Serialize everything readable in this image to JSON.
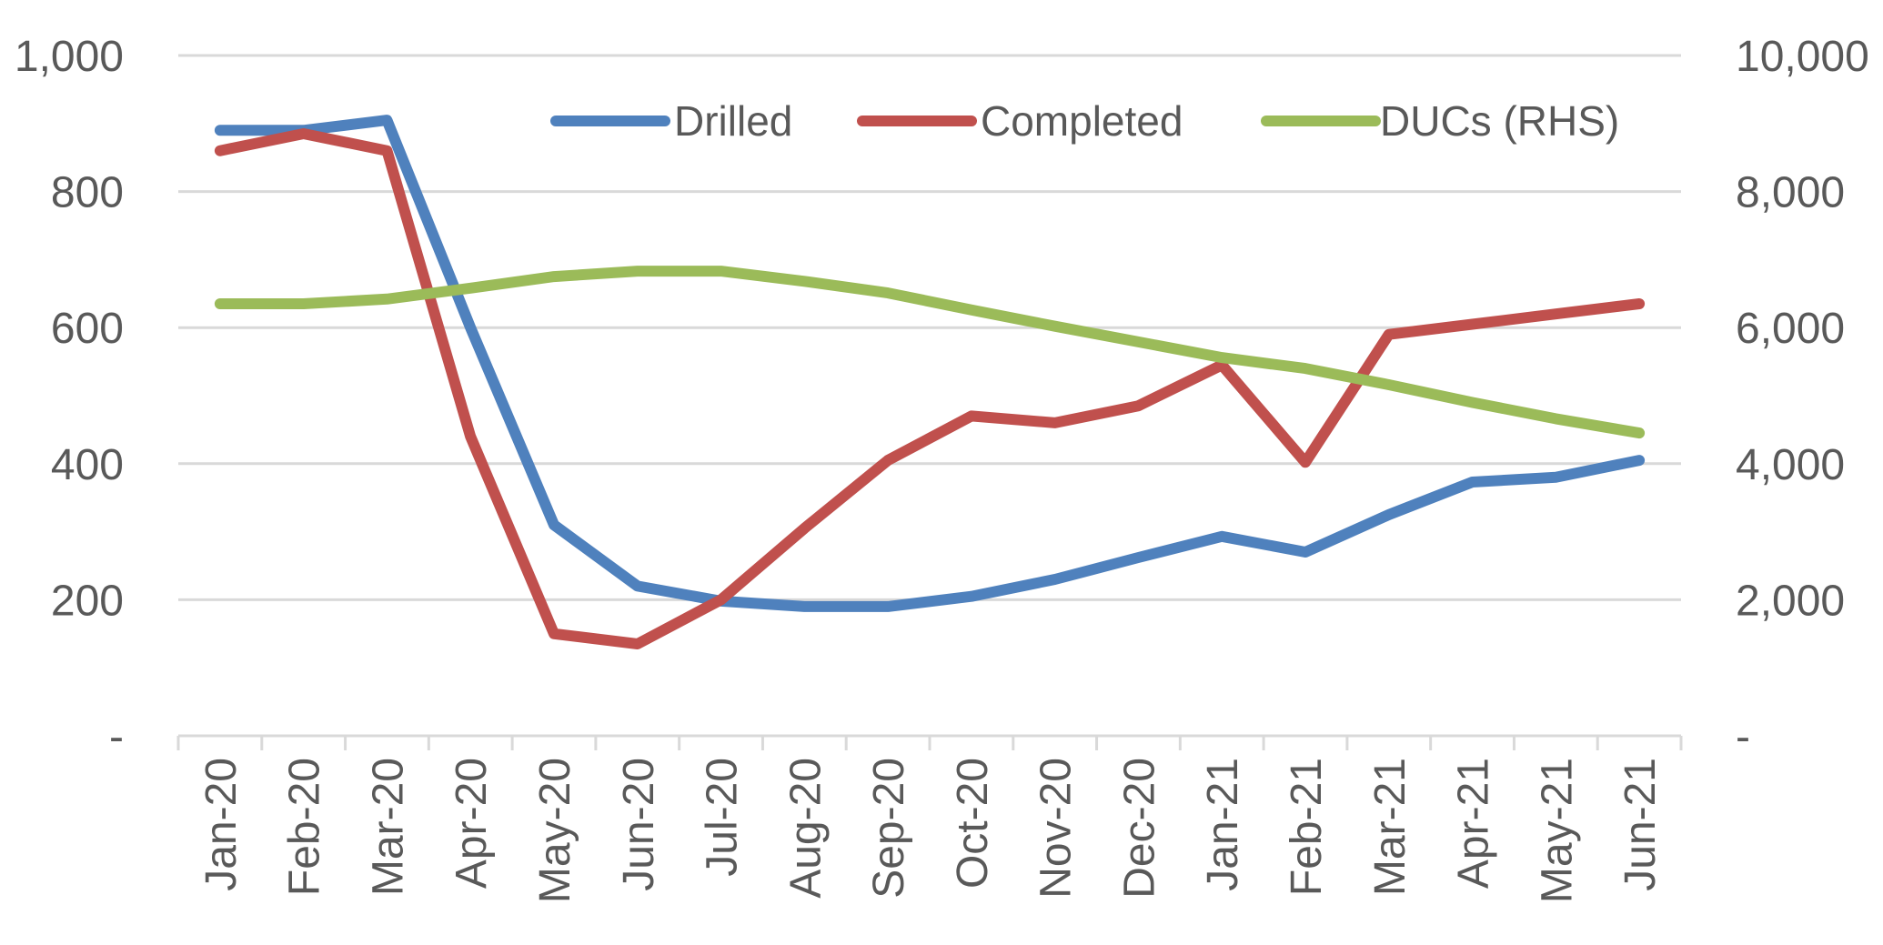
{
  "chart_data": {
    "type": "line",
    "categories": [
      "Jan-20",
      "Feb-20",
      "Mar-20",
      "Apr-20",
      "May-20",
      "Jun-20",
      "Jul-20",
      "Aug-20",
      "Sep-20",
      "Oct-20",
      "Nov-20",
      "Dec-20",
      "Jan-21",
      "Feb-21",
      "Mar-21",
      "Apr-21",
      "May-21",
      "Jun-21"
    ],
    "series": [
      {
        "name": "Drilled",
        "axis": "left",
        "color": "#4F81BD",
        "values": [
          890,
          890,
          905,
          600,
          310,
          220,
          198,
          190,
          190,
          205,
          230,
          262,
          293,
          270,
          325,
          373,
          380,
          405
        ]
      },
      {
        "name": "Completed",
        "axis": "left",
        "color": "#C0504D",
        "values": [
          860,
          885,
          860,
          440,
          150,
          135,
          200,
          305,
          405,
          470,
          460,
          485,
          545,
          402,
          590,
          605,
          620,
          635
        ]
      },
      {
        "name": "DUCs (RHS)",
        "axis": "right",
        "color": "#9BBB59",
        "values": [
          6350,
          6350,
          6420,
          6580,
          6750,
          6830,
          6830,
          6680,
          6510,
          6260,
          6020,
          5790,
          5560,
          5400,
          5160,
          4900,
          4660,
          4450
        ]
      }
    ],
    "y_left": {
      "lim": [
        0,
        1000
      ],
      "ticks": [
        0,
        200,
        400,
        600,
        800,
        1000
      ],
      "tick_labels": [
        "-",
        "200",
        "400",
        "600",
        "800",
        "1,000"
      ]
    },
    "y_right": {
      "lim": [
        0,
        10000
      ],
      "ticks": [
        0,
        2000,
        4000,
        6000,
        8000,
        10000
      ],
      "tick_labels": [
        "-",
        "2,000",
        "4,000",
        "6,000",
        "8,000",
        "10,000"
      ]
    },
    "title": "",
    "xlabel": "",
    "ylabel": "",
    "grid": true,
    "legend_position": "top",
    "colors": {
      "gridline": "#D9D9D9",
      "axis": "#D9D9D9",
      "text": "#595959"
    }
  }
}
